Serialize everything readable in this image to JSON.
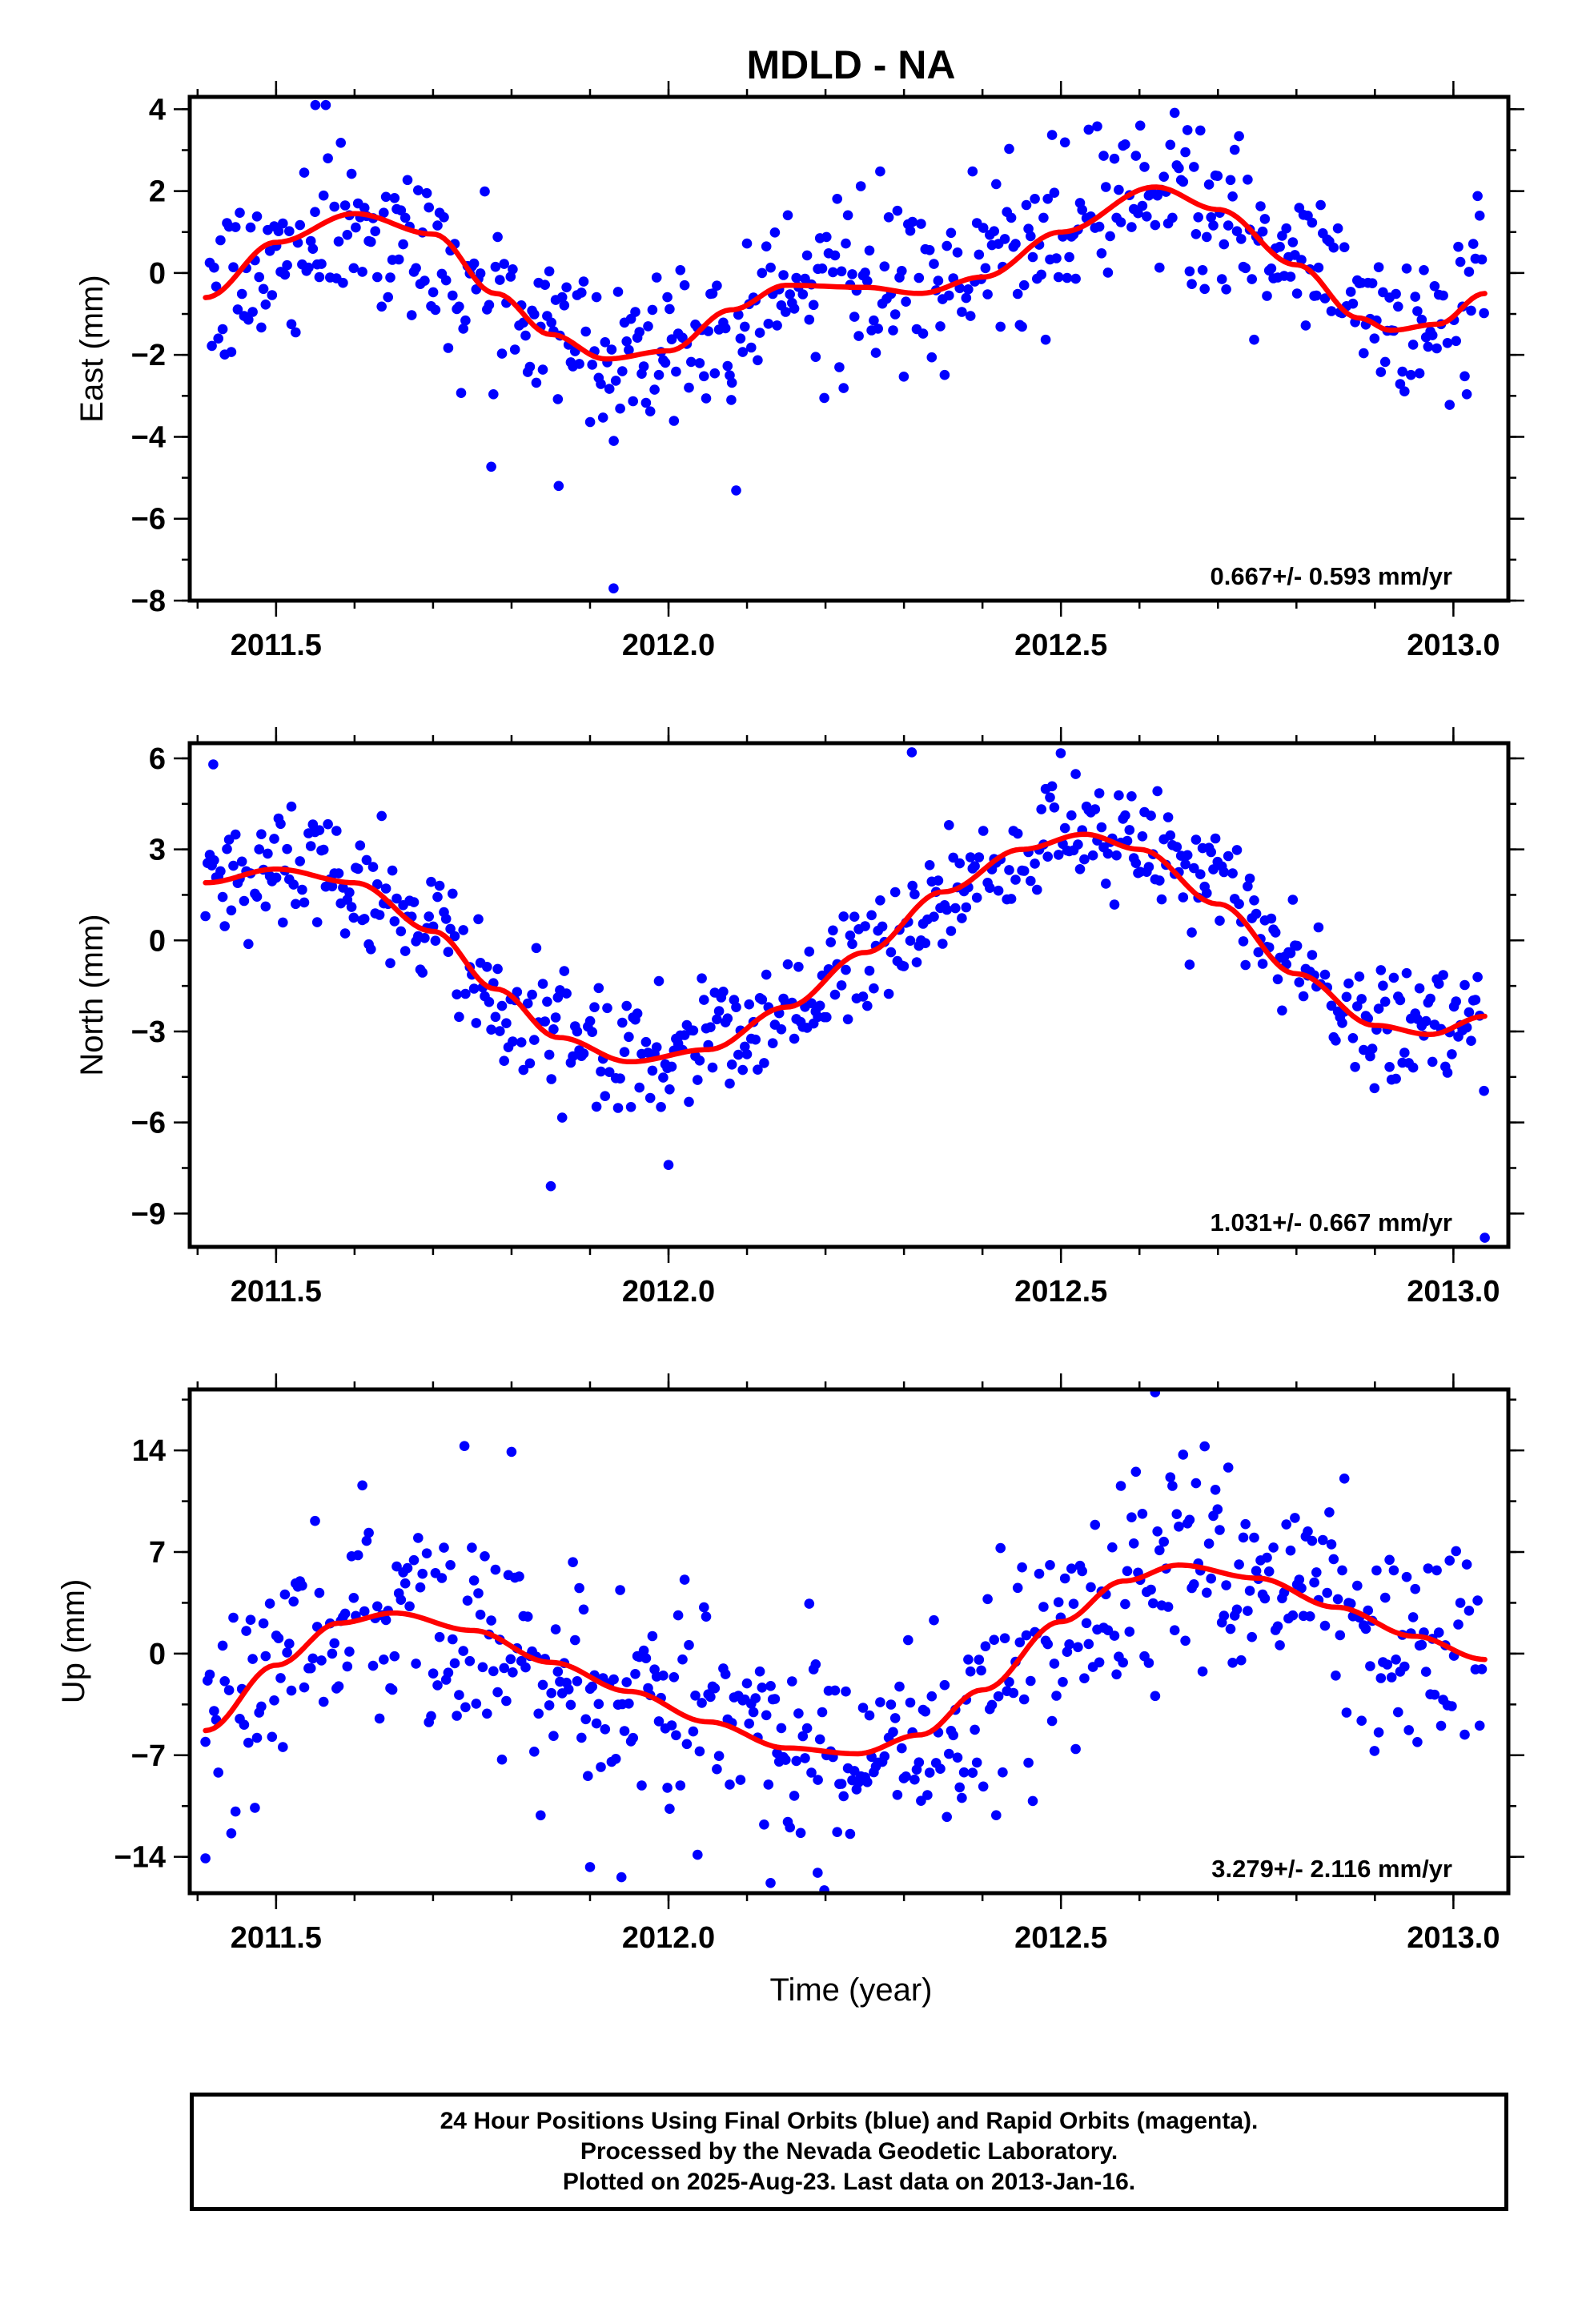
{
  "chart_data": [
    {
      "type": "scatter",
      "title": "MDLD - NA",
      "ylabel": "East (mm)",
      "xlabel": "",
      "xlim": [
        2011.39,
        2013.07
      ],
      "ylim": [
        -8,
        4.3
      ],
      "xticks": [
        2011.5,
        2012.0,
        2012.5,
        2013.0
      ],
      "xtick_labels": [
        "2011.5",
        "2012.0",
        "2012.5",
        "2013.0"
      ],
      "yticks": [
        4,
        2,
        0,
        -2,
        -4,
        -6,
        -8
      ],
      "ytick_labels": [
        "4",
        "2",
        "0",
        "−2",
        "−4",
        "−6",
        "−8"
      ],
      "grid": false,
      "rate_label": "0.667+/- 0.593 mm/yr",
      "series": [
        {
          "type": "scatter",
          "color": "#0000ff",
          "model": {
            "x0": 2011.41,
            "x1": 2013.04,
            "seasonal": [
              [
                2011.41,
                -0.6
              ],
              [
                2011.6,
                1.45
              ],
              [
                2011.78,
                -0.5
              ],
              [
                2011.92,
                -2.1
              ],
              [
                2012.03,
                -1.4
              ],
              [
                2012.15,
                -0.3
              ],
              [
                2012.32,
                -0.5
              ],
              [
                2012.45,
                0.5
              ],
              [
                2012.62,
                2.1
              ],
              [
                2012.8,
                0.2
              ],
              [
                2012.92,
                -1.4
              ],
              [
                2013.04,
                -0.5
              ]
            ],
            "scatter_sd": 1.05,
            "outliers": [
              [
                2011.55,
                4.1
              ],
              [
                2011.93,
                -7.7
              ],
              [
                2011.86,
                -5.2
              ],
              [
                2012.08,
                -3.1
              ]
            ]
          },
          "x": [],
          "y": []
        },
        {
          "type": "line",
          "color": "#ff0000",
          "x": [
            2011.41,
            2011.5,
            2011.6,
            2011.7,
            2011.78,
            2011.85,
            2011.92,
            2012.0,
            2012.08,
            2012.15,
            2012.25,
            2012.32,
            2012.4,
            2012.5,
            2012.62,
            2012.7,
            2012.8,
            2012.88,
            2012.92,
            2012.98,
            2013.04
          ],
          "y": [
            -0.6,
            0.75,
            1.45,
            0.95,
            -0.5,
            -1.5,
            -2.1,
            -1.9,
            -0.9,
            -0.3,
            -0.35,
            -0.5,
            -0.1,
            1.0,
            2.1,
            1.55,
            0.2,
            -1.1,
            -1.4,
            -1.25,
            -0.5
          ]
        }
      ]
    },
    {
      "type": "scatter",
      "title": "",
      "ylabel": "North (mm)",
      "xlabel": "",
      "xlim": [
        2011.39,
        2013.07
      ],
      "ylim": [
        -10.1,
        6.5
      ],
      "xticks": [
        2011.5,
        2012.0,
        2012.5,
        2013.0
      ],
      "xtick_labels": [
        "2011.5",
        "2012.0",
        "2012.5",
        "2013.0"
      ],
      "yticks": [
        6,
        3,
        0,
        -3,
        -6,
        -9
      ],
      "ytick_labels": [
        "6",
        "3",
        "0",
        "−3",
        "−6",
        "−9"
      ],
      "grid": false,
      "rate_label": "1.031+/- 0.667 mm/yr",
      "series": [
        {
          "type": "scatter",
          "color": "#0000ff",
          "model": {
            "seasonal": [
              [
                2011.41,
                1.9
              ],
              [
                2011.55,
                2.3
              ],
              [
                2011.7,
                0.3
              ],
              [
                2011.82,
                -2.6
              ],
              [
                2011.95,
                -4.0
              ],
              [
                2012.1,
                -3.0
              ],
              [
                2012.25,
                -0.5
              ],
              [
                2012.4,
                2.3
              ],
              [
                2012.53,
                3.5
              ],
              [
                2012.68,
                2.2
              ],
              [
                2012.8,
                -0.8
              ],
              [
                2012.92,
                -3.0
              ],
              [
                2013.04,
                -2.5
              ]
            ],
            "scatter_sd": 1.0,
            "outliers": [
              [
                2011.42,
                5.8
              ],
              [
                2012.31,
                6.2
              ],
              [
                2011.85,
                -8.1
              ],
              [
                2012.0,
                -7.4
              ],
              [
                2013.04,
                -9.8
              ]
            ]
          },
          "x": [],
          "y": []
        },
        {
          "type": "line",
          "color": "#ff0000",
          "x": [
            2011.41,
            2011.5,
            2011.6,
            2011.7,
            2011.78,
            2011.86,
            2011.95,
            2012.05,
            2012.15,
            2012.25,
            2012.35,
            2012.45,
            2012.53,
            2012.6,
            2012.7,
            2012.8,
            2012.9,
            2012.97,
            2013.04
          ],
          "y": [
            1.9,
            2.35,
            1.9,
            0.3,
            -1.6,
            -3.2,
            -4.0,
            -3.6,
            -2.2,
            -0.4,
            1.6,
            3.0,
            3.5,
            3.0,
            1.2,
            -1.1,
            -2.8,
            -3.1,
            -2.5
          ]
        }
      ]
    },
    {
      "type": "scatter",
      "title": "",
      "ylabel": "Up (mm)",
      "xlabel": "Time (year)",
      "xlim": [
        2011.39,
        2013.07
      ],
      "ylim": [
        -16.5,
        18.2
      ],
      "xticks": [
        2011.5,
        2012.0,
        2012.5,
        2013.0
      ],
      "xtick_labels": [
        "2011.5",
        "2012.0",
        "2012.5",
        "2013.0"
      ],
      "yticks": [
        14,
        7,
        0,
        -7,
        -14
      ],
      "ytick_labels": [
        "14",
        "7",
        "0",
        "−7",
        "−14"
      ],
      "grid": false,
      "rate_label": "3.279+/- 2.116 mm/yr",
      "series": [
        {
          "type": "scatter",
          "color": "#0000ff",
          "model": {
            "seasonal": [
              [
                2011.41,
                -5.3
              ],
              [
                2011.55,
                1.5
              ],
              [
                2011.65,
                2.8
              ],
              [
                2011.8,
                0.3
              ],
              [
                2012.0,
                -2.8
              ],
              [
                2012.15,
                -5.8
              ],
              [
                2012.24,
                -6.9
              ],
              [
                2012.35,
                -4.8
              ],
              [
                2012.48,
                1.0
              ],
              [
                2012.65,
                6.1
              ],
              [
                2012.8,
                4.0
              ],
              [
                2013.04,
                -0.4
              ]
            ],
            "scatter_sd": 3.6,
            "outliers": [
              [
                2011.74,
                14.3
              ],
              [
                2011.8,
                13.9
              ],
              [
                2012.62,
                18.0
              ],
              [
                2011.9,
                -14.7
              ],
              [
                2011.94,
                -15.4
              ],
              [
                2012.13,
                -15.8
              ],
              [
                2012.19,
                -15.1
              ],
              [
                2011.41,
                -14.1
              ]
            ]
          },
          "x": [],
          "y": []
        },
        {
          "type": "line",
          "color": "#ff0000",
          "x": [
            2011.41,
            2011.5,
            2011.58,
            2011.65,
            2011.75,
            2011.85,
            2011.95,
            2012.05,
            2012.15,
            2012.24,
            2012.32,
            2012.4,
            2012.5,
            2012.58,
            2012.65,
            2012.75,
            2012.85,
            2012.95,
            2013.04
          ],
          "y": [
            -5.3,
            -0.8,
            2.1,
            2.8,
            1.6,
            -0.6,
            -2.6,
            -4.7,
            -6.5,
            -6.9,
            -5.6,
            -2.5,
            2.2,
            5.0,
            6.1,
            5.2,
            3.2,
            1.2,
            -0.4
          ]
        }
      ]
    }
  ],
  "caption": {
    "lines": [
      "24 Hour Positions Using Final Orbits (blue) and Rapid Orbits (magenta).",
      "Processed by the Nevada Geodetic Laboratory.",
      "Plotted on 2025-Aug-23. Last data on 2013-Jan-16."
    ]
  },
  "colors": {
    "points": "#0000ff",
    "fit": "#ff0000",
    "frame": "#000000"
  }
}
